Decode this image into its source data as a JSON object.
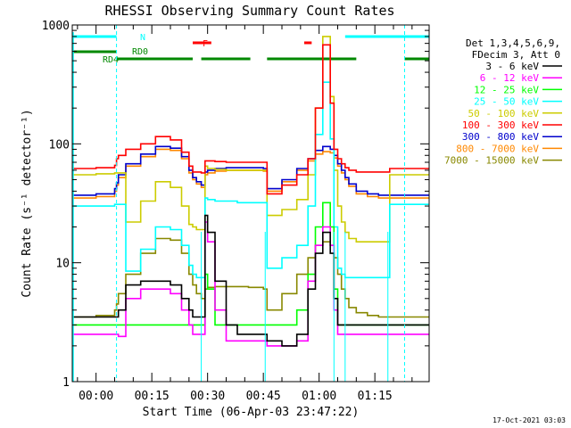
{
  "chart_data": {
    "type": "line",
    "title": "RHESSI Observing Summary Count Rates",
    "xlabel": "Start Time (06-Apr-03 23:47:22)",
    "ylabel": "Count Rate (s⁻¹ detector⁻¹)",
    "yscale": "log",
    "ylim": [
      1,
      1000
    ],
    "xlim_minutes": [
      -6.4,
      89.6
    ],
    "x_tick_labels": [
      "00:00",
      "00:15",
      "00:30",
      "00:45",
      "01:00",
      "01:15"
    ],
    "x_tick_minutes": [
      0,
      15,
      30,
      45,
      60,
      75
    ],
    "y_tick_labels": [
      "1",
      "10",
      "100",
      "1000"
    ],
    "y_tick_values": [
      1,
      10,
      100,
      1000
    ],
    "legend": {
      "header": [
        "Det 1,3,4,5,6,9,",
        "FDecim 3, Att 0"
      ],
      "placement": "right"
    },
    "x_minutes": [
      -6.4,
      -2,
      0,
      5,
      5.5,
      6,
      8,
      12,
      16,
      20,
      23,
      25,
      26,
      27,
      28.3,
      28.5,
      29.3,
      30,
      32,
      35,
      38,
      41,
      43,
      45,
      45.5,
      46,
      50,
      54,
      57,
      59,
      61,
      63,
      64,
      65,
      66,
      67,
      68,
      70,
      73,
      76,
      78,
      78.5,
      79,
      81,
      83
    ],
    "series": [
      {
        "name": "3 - 6 keV",
        "color": "#000000",
        "values": [
          3.5,
          3.5,
          3.5,
          3.5,
          3.5,
          4,
          6.5,
          7,
          7,
          6.5,
          5,
          4,
          3.5,
          3.5,
          3.5,
          3.5,
          25,
          18,
          7,
          3,
          2.5,
          2.5,
          2.5,
          2.5,
          2.5,
          2.2,
          2,
          2.5,
          6,
          12,
          18,
          12,
          5,
          3,
          3,
          3,
          3,
          3,
          3,
          3,
          3,
          3,
          3,
          3,
          3
        ]
      },
      {
        "name": "6 - 12 keV",
        "color": "#ff00ff",
        "values": [
          2.5,
          2.5,
          2.5,
          2.5,
          2.5,
          2.4,
          5,
          6,
          6,
          5.5,
          4,
          3,
          2.5,
          2.5,
          2.5,
          2.5,
          22,
          15,
          4,
          2.2,
          2.2,
          2.2,
          2.2,
          2.2,
          2.2,
          2,
          2,
          2.2,
          7,
          14,
          20,
          14,
          4,
          2.5,
          2.5,
          2.5,
          2.5,
          2.5,
          2.5,
          2.5,
          2.5,
          2.5,
          2.5,
          2.5,
          2.5
        ]
      },
      {
        "name": "12 - 25 keV",
        "color": "#00ff00",
        "values": [
          3,
          3,
          3,
          3,
          3,
          3,
          3,
          3,
          3,
          3,
          3,
          3,
          3,
          3,
          3,
          3,
          8,
          6,
          3,
          3,
          3,
          3,
          3,
          3,
          3,
          3,
          3,
          4,
          8,
          20,
          32,
          20,
          6,
          3,
          3,
          3,
          3,
          3,
          3,
          3,
          3,
          3,
          3,
          3,
          3
        ]
      },
      {
        "name": "25 - 50 keV",
        "color": "#00ffff",
        "values": [
          30,
          30,
          30,
          31,
          31,
          31,
          8.5,
          13,
          20,
          19,
          14,
          9.5,
          8,
          7.5,
          7.5,
          7.5,
          35,
          34,
          33,
          33,
          32,
          32,
          32,
          32,
          32,
          9,
          11,
          14,
          30,
          120,
          330,
          110,
          20,
          9,
          8,
          7.5,
          7.5,
          7.5,
          7.5,
          7.5,
          7.5,
          7.5,
          31,
          31,
          31
        ]
      },
      {
        "name": "50 - 100 keV",
        "color": "#cccc00",
        "values": [
          55,
          55,
          56,
          57,
          57,
          57,
          22,
          33,
          48,
          43,
          30,
          21,
          20,
          19,
          19,
          19,
          65,
          62,
          61,
          60,
          60,
          60,
          60,
          60,
          60,
          25,
          28,
          34,
          55,
          200,
          800,
          250,
          60,
          30,
          22,
          18,
          16,
          15,
          15,
          15,
          15,
          15,
          55,
          55,
          55
        ]
      },
      {
        "name": "100 - 300 keV",
        "color": "#ff0000",
        "values": [
          62,
          62,
          63,
          66,
          75,
          80,
          90,
          100,
          115,
          108,
          85,
          65,
          58,
          58,
          57,
          57,
          72,
          72,
          71,
          70,
          70,
          70,
          70,
          70,
          70,
          38,
          45,
          55,
          75,
          200,
          680,
          220,
          90,
          75,
          68,
          63,
          60,
          58,
          58,
          58,
          58,
          58,
          62,
          62,
          62
        ]
      },
      {
        "name": "300 - 800 keV",
        "color": "#0000cc",
        "values": [
          37,
          37,
          38,
          42,
          47,
          55,
          68,
          82,
          95,
          92,
          78,
          60,
          52,
          48,
          45,
          45,
          58,
          60,
          62,
          63,
          63,
          63,
          63,
          62,
          62,
          42,
          50,
          62,
          75,
          88,
          95,
          90,
          80,
          68,
          60,
          52,
          46,
          40,
          38,
          37,
          37,
          37,
          37,
          37,
          37
        ]
      },
      {
        "name": "800 - 7000 keV",
        "color": "#ff8800",
        "values": [
          35,
          35,
          36,
          40,
          45,
          52,
          65,
          78,
          90,
          88,
          75,
          57,
          50,
          46,
          43,
          43,
          55,
          57,
          59,
          60,
          60,
          60,
          60,
          59,
          59,
          40,
          48,
          60,
          72,
          82,
          86,
          84,
          76,
          65,
          57,
          50,
          44,
          38,
          36,
          35,
          35,
          35,
          35,
          35,
          35
        ]
      },
      {
        "name": "7000 - 15000 keV",
        "color": "#888800",
        "values": [
          3.5,
          3.5,
          3.6,
          4,
          4.5,
          5.5,
          8,
          12,
          16,
          15.5,
          12,
          8,
          6.5,
          5.5,
          5,
          5,
          6,
          6.2,
          6.3,
          6.3,
          6.3,
          6.2,
          6.2,
          6,
          6,
          4,
          5.5,
          8,
          11,
          14,
          15,
          14,
          11,
          8,
          6,
          5,
          4.2,
          3.8,
          3.6,
          3.5,
          3.5,
          3.5,
          3.5,
          3.5,
          3.5
        ]
      }
    ],
    "flag_bars": [
      {
        "label": "N",
        "color": "#00ffff",
        "row": 1,
        "segments": [
          [
            -6.4,
            5.5
          ],
          [
            67,
            89.6
          ]
        ]
      },
      {
        "label": "F",
        "color": "#ff0000",
        "row": 2,
        "segments": [
          [
            26,
            31
          ],
          [
            56,
            58
          ]
        ]
      },
      {
        "label": "RD0",
        "color": "#008800",
        "row": 3,
        "segments": [
          [
            -6.4,
            5.5
          ]
        ]
      },
      {
        "label": "RD4",
        "color": "#008800",
        "row": 4,
        "segments": [
          [
            5.5,
            26
          ],
          [
            28.3,
            41.5
          ],
          [
            46,
            70
          ],
          [
            83,
            89.6
          ]
        ]
      }
    ],
    "vertical_markers_minutes": [
      5.5,
      83
    ],
    "boundary_markers_minutes": [
      28.3,
      45.5,
      64,
      67,
      78.5
    ]
  },
  "footer": {
    "timestamp": "17-Oct-2021 03:03"
  },
  "colors": {
    "background": "#ffffff",
    "axis": "#000000"
  }
}
